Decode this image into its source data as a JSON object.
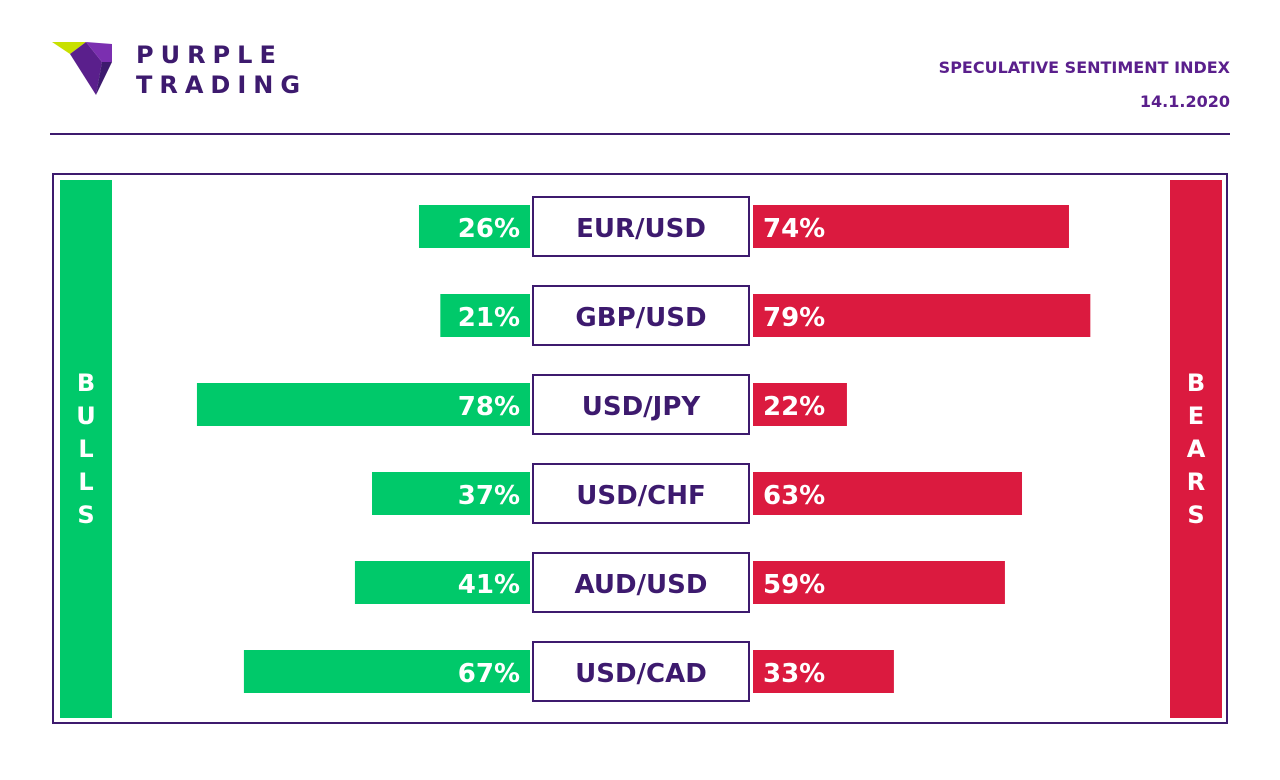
{
  "header": {
    "brand_line1": "PURPLE",
    "brand_line2": "TRADING",
    "title": "SPECULATIVE SENTIMENT INDEX",
    "date": "14.1.2020"
  },
  "colors": {
    "bull": "#00c96a",
    "bear": "#db1a3f",
    "brand": "#3d1a6e",
    "title": "#5a1f8c"
  },
  "side_labels": {
    "bulls": "BULLS",
    "bears": "BEARS"
  },
  "chart_data": {
    "type": "bar",
    "title": "SPECULATIVE SENTIMENT INDEX",
    "categories": [
      "EUR/USD",
      "GBP/USD",
      "USD/JPY",
      "USD/CHF",
      "AUD/USD",
      "USD/CAD"
    ],
    "series": [
      {
        "values": [
          26,
          21,
          78,
          37,
          41,
          67
        ]
      },
      {
        "values": [
          74,
          79,
          22,
          63,
          59,
          33
        ]
      }
    ],
    "value_labels": {
      "bulls": [
        "26%",
        "21%",
        "78%",
        "37%",
        "41%",
        "67%"
      ],
      "bears": [
        "74%",
        "79%",
        "22%",
        "63%",
        "59%",
        "33%"
      ]
    },
    "xlim": [
      0,
      100
    ]
  }
}
